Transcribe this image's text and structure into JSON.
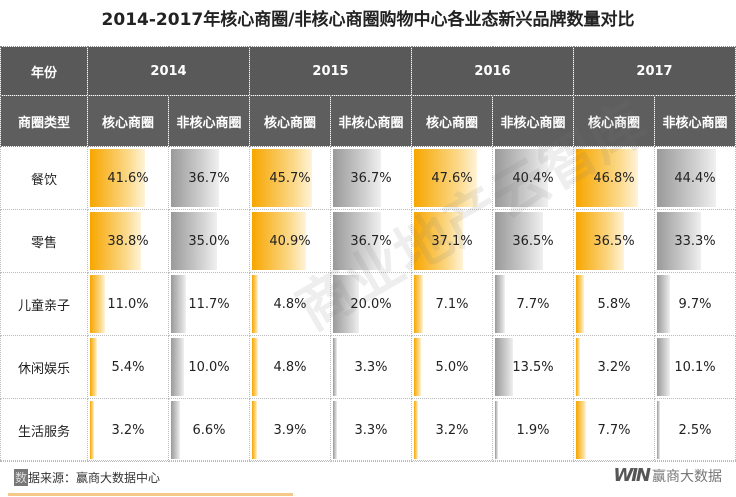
{
  "title": "2014-2017年核心商圈/非核心商圈购物中心各业态新兴品牌数量对比",
  "header": {
    "year_label": "年份",
    "type_label": "商圈类型",
    "years": [
      "2014",
      "2015",
      "2016",
      "2017"
    ],
    "core_label": "核心商圈",
    "noncore_label": "非核心商圈"
  },
  "colors": {
    "core": "#f7a600",
    "noncore": "#9a9a9a",
    "header": "#595959"
  },
  "chart_data": {
    "type": "table",
    "title": "2014-2017年核心商圈/非核心商圈购物中心各业态新兴品牌数量对比",
    "columns": [
      "2014 核心商圈",
      "2014 非核心商圈",
      "2015 核心商圈",
      "2015 非核心商圈",
      "2016 核心商圈",
      "2016 非核心商圈",
      "2017 核心商圈",
      "2017 非核心商圈"
    ],
    "rows": [
      {
        "category": "餐饮",
        "values": [
          "41.6%",
          "36.7%",
          "45.7%",
          "36.7%",
          "47.6%",
          "40.4%",
          "46.8%",
          "44.4%"
        ]
      },
      {
        "category": "零售",
        "values": [
          "38.8%",
          "35.0%",
          "40.9%",
          "36.7%",
          "37.1%",
          "36.5%",
          "36.5%",
          "33.3%"
        ]
      },
      {
        "category": "儿童亲子",
        "values": [
          "11.0%",
          "11.7%",
          "4.8%",
          "20.0%",
          "7.1%",
          "7.7%",
          "5.8%",
          "9.7%"
        ]
      },
      {
        "category": "休闲娱乐",
        "values": [
          "5.4%",
          "10.0%",
          "4.8%",
          "3.3%",
          "5.0%",
          "13.5%",
          "3.2%",
          "10.1%"
        ]
      },
      {
        "category": "生活服务",
        "values": [
          "3.2%",
          "6.6%",
          "3.9%",
          "3.3%",
          "3.2%",
          "1.9%",
          "7.7%",
          "2.5%"
        ]
      }
    ]
  },
  "footer": {
    "source_box": "数",
    "source": "据来源：赢商大数据中心",
    "logo_mark": "WIN",
    "logo_text": "赢商大数据"
  },
  "watermark": "商业地产云智库"
}
